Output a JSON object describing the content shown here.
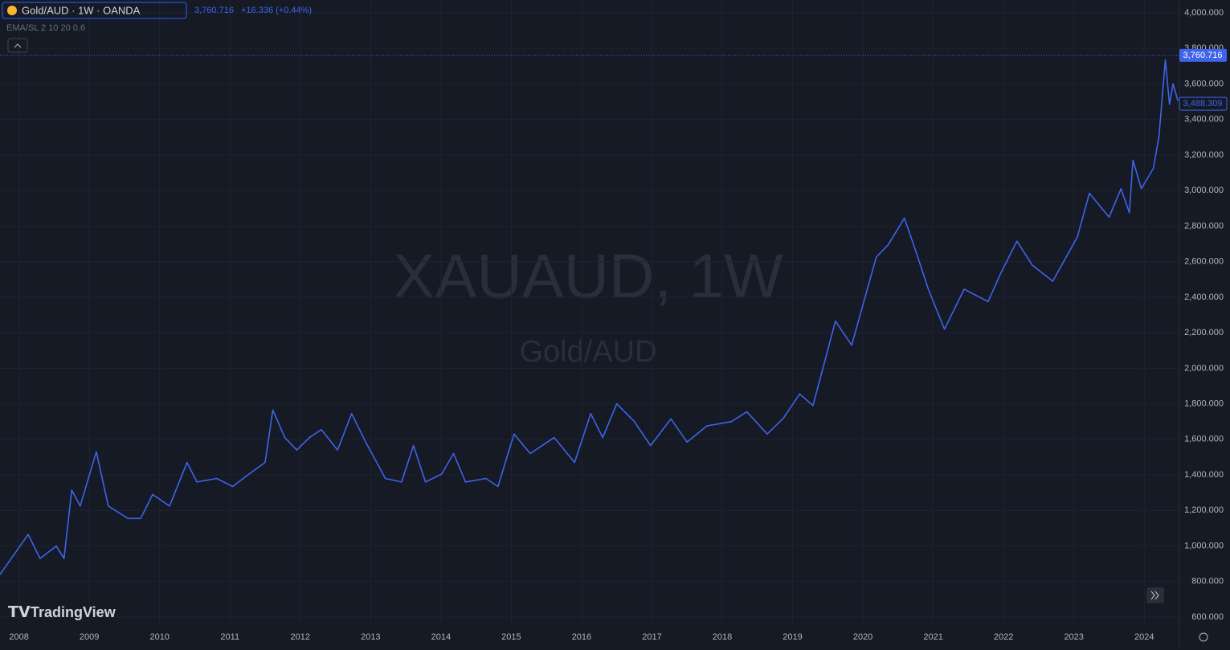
{
  "chart_data": {
    "type": "line",
    "symbol": "Gold/AUD · 1W · OANDA",
    "change": "+16.336 (+0.44%)",
    "indicator": "EMA/SL 2 10 20 0.6",
    "watermark": "XAUAUD, 1W",
    "watermark_subtitle": "Gold/AUD",
    "brand": "TradingView",
    "last_price": {
      "value": 3760.716,
      "label": "3,760.716"
    },
    "indicator_price": {
      "value": 3488.309,
      "label": "3,488.309"
    },
    "color": "#3d64ea",
    "grid": true,
    "x": [
      2007.73,
      2008.13,
      2008.3,
      2008.53,
      2008.64,
      2008.75,
      2008.87,
      2009.1,
      2009.27,
      2009.55,
      2009.73,
      2009.9,
      2010.14,
      2010.39,
      2010.53,
      2010.81,
      2011.04,
      2011.27,
      2011.5,
      2011.61,
      2011.78,
      2011.95,
      2012.13,
      2012.3,
      2012.53,
      2012.73,
      2012.93,
      2013.21,
      2013.44,
      2013.61,
      2013.78,
      2014.01,
      2014.18,
      2014.35,
      2014.64,
      2014.81,
      2015.04,
      2015.27,
      2015.61,
      2015.9,
      2016.13,
      2016.3,
      2016.5,
      2016.75,
      2016.98,
      2017.27,
      2017.5,
      2017.78,
      2018.13,
      2018.35,
      2018.64,
      2018.87,
      2019.1,
      2019.29,
      2019.61,
      2019.84,
      2020.19,
      2020.36,
      2020.59,
      2020.76,
      2020.93,
      2021.16,
      2021.44,
      2021.78,
      2021.96,
      2022.19,
      2022.41,
      2022.7,
      2023.05,
      2023.22,
      2023.5,
      2023.67,
      2023.79,
      2023.84,
      2023.96,
      2024.13,
      2024.21,
      2024.3,
      2024.36,
      2024.41,
      2024.48
    ],
    "values": [
      840,
      1065,
      930,
      1000,
      930,
      1315,
      1225,
      1530,
      1225,
      1155,
      1155,
      1290,
      1225,
      1470,
      1360,
      1380,
      1335,
      1405,
      1470,
      1765,
      1610,
      1540,
      1610,
      1655,
      1540,
      1745,
      1585,
      1380,
      1360,
      1565,
      1360,
      1405,
      1520,
      1360,
      1380,
      1335,
      1630,
      1520,
      1610,
      1470,
      1745,
      1610,
      1800,
      1700,
      1565,
      1715,
      1585,
      1675,
      1700,
      1755,
      1630,
      1720,
      1855,
      1790,
      2265,
      2130,
      2625,
      2695,
      2845,
      2650,
      2445,
      2220,
      2445,
      2375,
      2535,
      2715,
      2580,
      2490,
      2740,
      2985,
      2850,
      3010,
      2875,
      3170,
      3010,
      3125,
      3305,
      3735,
      3485,
      3600,
      3505
    ],
    "xlim": [
      2007.73,
      2024.5
    ],
    "xticks": [
      2008,
      2009,
      2010,
      2011,
      2012,
      2013,
      2014,
      2015,
      2016,
      2017,
      2018,
      2019,
      2020,
      2021,
      2022,
      2023,
      2024
    ],
    "ylim": [
      546,
      4072
    ],
    "yticks": [
      {
        "value": 600,
        "label": "600.000"
      },
      {
        "value": 800,
        "label": "800.000"
      },
      {
        "value": 1000,
        "label": "1,000.000"
      },
      {
        "value": 1200,
        "label": "1,200.000"
      },
      {
        "value": 1400,
        "label": "1,400.000"
      },
      {
        "value": 1600,
        "label": "1,600.000"
      },
      {
        "value": 1800,
        "label": "1,800.000"
      },
      {
        "value": 2000,
        "label": "2,000.000"
      },
      {
        "value": 2200,
        "label": "2,200.000"
      },
      {
        "value": 2400,
        "label": "2,400.000"
      },
      {
        "value": 2600,
        "label": "2,600.000"
      },
      {
        "value": 2800,
        "label": "2,800.000"
      },
      {
        "value": 3000,
        "label": "3,000.000"
      },
      {
        "value": 3200,
        "label": "3,200.000"
      },
      {
        "value": 3400,
        "label": "3,400.000"
      },
      {
        "value": 3600,
        "label": "3,600.000"
      },
      {
        "value": 3800,
        "label": "3,800.000"
      },
      {
        "value": 4000,
        "label": "4,000.000"
      }
    ]
  }
}
